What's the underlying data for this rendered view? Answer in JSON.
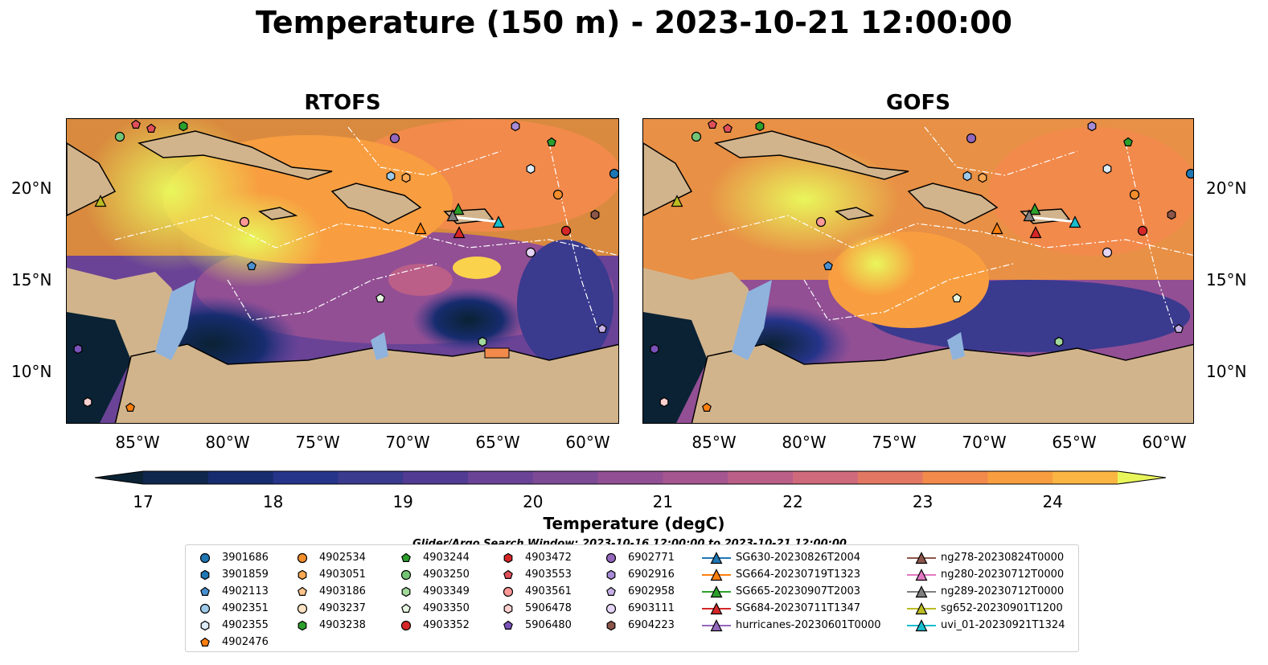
{
  "title": "Temperature (150 m) - 2023-10-21 12:00:00",
  "panels": [
    {
      "title": "RTOFS"
    },
    {
      "title": "GOFS"
    }
  ],
  "lon_ticks": [
    "85°W",
    "80°W",
    "75°W",
    "70°W",
    "65°W",
    "60°W"
  ],
  "lat_ticks": [
    "20°N",
    "15°N",
    "10°N"
  ],
  "colorbar": {
    "label": "Temperature (degC)",
    "ticks": [
      "17",
      "18",
      "19",
      "20",
      "21",
      "22",
      "23",
      "24"
    ],
    "min": 17.0,
    "max": 24.5,
    "step": 0.5,
    "extend": "both",
    "colors": [
      "#0a2233",
      "#10274d",
      "#162c6e",
      "#26348a",
      "#3a3a8f",
      "#523c93",
      "#6a4396",
      "#7d4a95",
      "#924f94",
      "#a55690",
      "#bb5f88",
      "#cf6a7c",
      "#e27864",
      "#f28a4c",
      "#f89e40",
      "#fbb542",
      "#fbd24c",
      "#e9f65b"
    ]
  },
  "legend": {
    "header": "Glider/Argo Search Window: 2023-10-16 12:00:00 to 2023-10-21 12:00:00",
    "argo": [
      {
        "id": "3901686",
        "marker": "circle",
        "color": "#1f77b4"
      },
      {
        "id": "3901859",
        "marker": "hexagon",
        "color": "#1f77b4"
      },
      {
        "id": "4902113",
        "marker": "pentagon",
        "color": "#4a90d0"
      },
      {
        "id": "4902351",
        "marker": "circle",
        "color": "#9ecae9"
      },
      {
        "id": "4902355",
        "marker": "hexagon",
        "color": "#dcecf8"
      },
      {
        "id": "4902476",
        "marker": "pentagon",
        "color": "#ff7f0e"
      },
      {
        "id": "4902534",
        "marker": "circle",
        "color": "#f28e2b"
      },
      {
        "id": "4903051",
        "marker": "hexagon",
        "color": "#fda852"
      },
      {
        "id": "4903186",
        "marker": "pentagon",
        "color": "#fdc48e"
      },
      {
        "id": "4903237",
        "marker": "circle",
        "color": "#fde3c4"
      },
      {
        "id": "4903238",
        "marker": "hexagon",
        "color": "#2ca02c"
      },
      {
        "id": "4903244",
        "marker": "pentagon",
        "color": "#2ca02c"
      },
      {
        "id": "4903250",
        "marker": "circle",
        "color": "#74c476"
      },
      {
        "id": "4903349",
        "marker": "hexagon",
        "color": "#a1d99b"
      },
      {
        "id": "4903350",
        "marker": "pentagon",
        "color": "#e5f5e0"
      },
      {
        "id": "4903352",
        "marker": "circle",
        "color": "#d62728"
      },
      {
        "id": "4903472",
        "marker": "hexagon",
        "color": "#d62728"
      },
      {
        "id": "4903553",
        "marker": "pentagon",
        "color": "#e0505a"
      },
      {
        "id": "4903561",
        "marker": "circle",
        "color": "#ff9896"
      },
      {
        "id": "5906478",
        "marker": "hexagon",
        "color": "#fcd0d0"
      },
      {
        "id": "5906480",
        "marker": "pentagon",
        "color": "#7b52b9"
      },
      {
        "id": "6902771",
        "marker": "circle",
        "color": "#9467bd"
      },
      {
        "id": "6902916",
        "marker": "hexagon",
        "color": "#a78bd6"
      },
      {
        "id": "6902958",
        "marker": "pentagon",
        "color": "#c5b0e6"
      },
      {
        "id": "6903111",
        "marker": "circle",
        "color": "#e5d5f5"
      },
      {
        "id": "6904223",
        "marker": "hexagon",
        "color": "#8c564b"
      }
    ],
    "gliders": [
      {
        "id": "SG630-20230826T2004",
        "color": "#1f77b4"
      },
      {
        "id": "SG664-20230719T1323",
        "color": "#ff7f0e"
      },
      {
        "id": "SG665-20230907T2003",
        "color": "#2ca02c"
      },
      {
        "id": "SG684-20230711T1347",
        "color": "#d62728"
      },
      {
        "id": "hurricanes-20230601T0000",
        "color": "#9467bd"
      },
      {
        "id": "ng278-20230824T0000",
        "color": "#8c564b"
      },
      {
        "id": "ng280-20230712T0000",
        "color": "#e377c2"
      },
      {
        "id": "ng289-20230712T0000",
        "color": "#7f7f7f"
      },
      {
        "id": "sg652-20230901T1200",
        "color": "#bcbd22"
      },
      {
        "id": "uvi_01-20230921T1324",
        "color": "#17becf"
      }
    ]
  },
  "map_colors": {
    "land": "#d2b48c",
    "shelf": "#8fb3dd",
    "coast": "#000000"
  }
}
